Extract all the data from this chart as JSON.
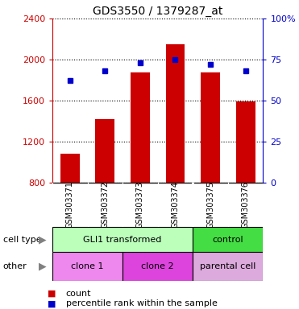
{
  "title": "GDS3550 / 1379287_at",
  "samples": [
    "GSM303371",
    "GSM303372",
    "GSM303373",
    "GSM303374",
    "GSM303375",
    "GSM303376"
  ],
  "counts": [
    1080,
    1420,
    1870,
    2150,
    1870,
    1590
  ],
  "percentiles": [
    62,
    68,
    73,
    75,
    72,
    68
  ],
  "ylim_left": [
    800,
    2400
  ],
  "ylim_right": [
    0,
    100
  ],
  "yticks_left": [
    800,
    1200,
    1600,
    2000,
    2400
  ],
  "yticks_right": [
    0,
    25,
    50,
    75,
    100
  ],
  "ytick_labels_left": [
    "800",
    "1200",
    "1600",
    "2000",
    "2400"
  ],
  "ytick_labels_right": [
    "0",
    "25",
    "50",
    "75",
    "100%"
  ],
  "bar_color": "#cc0000",
  "dot_color": "#0000cc",
  "cell_type_groups": [
    {
      "label": "GLI1 transformed",
      "start": 0,
      "end": 4,
      "color": "#bbffbb"
    },
    {
      "label": "control",
      "start": 4,
      "end": 6,
      "color": "#44dd44"
    }
  ],
  "other_groups": [
    {
      "label": "clone 1",
      "start": 0,
      "end": 2,
      "color": "#ee88ee"
    },
    {
      "label": "clone 2",
      "start": 2,
      "end": 4,
      "color": "#dd44dd"
    },
    {
      "label": "parental cell",
      "start": 4,
      "end": 6,
      "color": "#ddaadd"
    }
  ],
  "legend_count_label": "count",
  "legend_pct_label": "percentile rank within the sample",
  "left_axis_color": "#cc0000",
  "right_axis_color": "#0000cc",
  "bg_color": "#ffffff",
  "bar_width": 0.55,
  "sample_bg": "#cccccc",
  "sample_border": "#999999"
}
